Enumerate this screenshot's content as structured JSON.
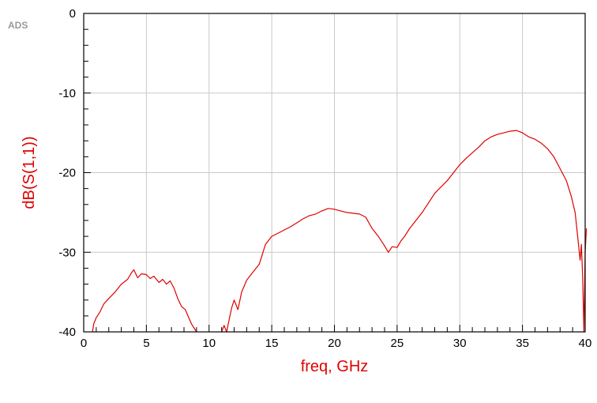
{
  "logo": "ADS",
  "colors": {
    "trace": "#e00000",
    "axis_title": "#e00000",
    "grid": "#c8c8c8",
    "frame": "#000000"
  },
  "chart_data": {
    "type": "line",
    "title": "",
    "xlabel": "freq, GHz",
    "ylabel": "dB(S(1,1))",
    "xlim": [
      0,
      40
    ],
    "ylim": [
      -40,
      0
    ],
    "x_ticks": [
      0,
      5,
      10,
      15,
      20,
      25,
      30,
      35,
      40
    ],
    "x_tick_labels": [
      "0",
      "5",
      "10",
      "15",
      "20",
      "25",
      "30",
      "35",
      "40"
    ],
    "y_ticks": [
      -40,
      -30,
      -20,
      -10,
      0
    ],
    "y_tick_labels": [
      "-40",
      "-30",
      "-20",
      "-10",
      "0"
    ],
    "grid": true,
    "series": [
      {
        "segments": [
          [
            [
              0.7,
              -40
            ],
            [
              0.8,
              -39
            ],
            [
              1.0,
              -38.2
            ],
            [
              1.3,
              -37.5
            ],
            [
              1.6,
              -36.5
            ],
            [
              2.0,
              -35.8
            ],
            [
              2.5,
              -35
            ],
            [
              3.0,
              -34
            ],
            [
              3.5,
              -33.4
            ],
            [
              3.8,
              -32.6
            ],
            [
              4.0,
              -32.2
            ],
            [
              4.3,
              -33.2
            ],
            [
              4.6,
              -32.7
            ],
            [
              5.0,
              -32.8
            ],
            [
              5.3,
              -33.3
            ],
            [
              5.6,
              -33
            ],
            [
              6.0,
              -33.8
            ],
            [
              6.3,
              -33.4
            ],
            [
              6.6,
              -34
            ],
            [
              6.9,
              -33.6
            ],
            [
              7.2,
              -34.5
            ],
            [
              7.5,
              -35.8
            ],
            [
              7.8,
              -36.8
            ],
            [
              8.1,
              -37.2
            ],
            [
              8.4,
              -38.3
            ],
            [
              8.6,
              -39
            ],
            [
              8.8,
              -39.5
            ],
            [
              9.0,
              -40
            ]
          ],
          [
            [
              11.0,
              -40
            ],
            [
              11.2,
              -39.2
            ],
            [
              11.4,
              -40
            ],
            [
              11.6,
              -38.5
            ],
            [
              11.8,
              -37
            ],
            [
              12.0,
              -36
            ],
            [
              12.3,
              -37.2
            ],
            [
              12.6,
              -35
            ],
            [
              13.0,
              -33.5
            ],
            [
              13.5,
              -32.5
            ],
            [
              14.0,
              -31.5
            ],
            [
              14.5,
              -29
            ],
            [
              15.0,
              -28
            ],
            [
              15.5,
              -27.6
            ],
            [
              16.0,
              -27.2
            ],
            [
              16.5,
              -26.8
            ],
            [
              17.0,
              -26.3
            ],
            [
              17.5,
              -25.8
            ],
            [
              18.0,
              -25.4
            ],
            [
              18.5,
              -25.2
            ],
            [
              19.0,
              -24.8
            ],
            [
              19.5,
              -24.5
            ],
            [
              20.0,
              -24.6
            ],
            [
              20.5,
              -24.8
            ],
            [
              21.0,
              -25
            ],
            [
              21.5,
              -25.1
            ],
            [
              22.0,
              -25.2
            ],
            [
              22.5,
              -25.6
            ],
            [
              23.0,
              -27
            ],
            [
              23.5,
              -28
            ],
            [
              24.0,
              -29.2
            ],
            [
              24.3,
              -30
            ],
            [
              24.6,
              -29.3
            ],
            [
              25.0,
              -29.4
            ],
            [
              25.3,
              -28.6
            ],
            [
              25.6,
              -28
            ],
            [
              26.0,
              -27
            ],
            [
              26.5,
              -26
            ],
            [
              27.0,
              -25
            ],
            [
              27.5,
              -23.8
            ],
            [
              28.0,
              -22.6
            ],
            [
              28.5,
              -21.8
            ],
            [
              29.0,
              -21
            ],
            [
              29.5,
              -20
            ],
            [
              30.0,
              -19
            ],
            [
              30.5,
              -18.2
            ],
            [
              31.0,
              -17.5
            ],
            [
              31.5,
              -16.8
            ],
            [
              32.0,
              -16
            ],
            [
              32.5,
              -15.5
            ],
            [
              33.0,
              -15.2
            ],
            [
              33.5,
              -15
            ],
            [
              34.0,
              -14.8
            ],
            [
              34.5,
              -14.7
            ],
            [
              35.0,
              -15
            ],
            [
              35.5,
              -15.5
            ],
            [
              36.0,
              -15.8
            ],
            [
              36.5,
              -16.3
            ],
            [
              37.0,
              -17
            ],
            [
              37.5,
              -18
            ],
            [
              38.0,
              -19.5
            ],
            [
              38.5,
              -21
            ],
            [
              38.9,
              -23
            ],
            [
              39.2,
              -25
            ],
            [
              39.4,
              -28
            ],
            [
              39.6,
              -31
            ],
            [
              39.7,
              -29
            ],
            [
              39.8,
              -33
            ],
            [
              39.9,
              -40
            ],
            [
              40.0,
              -30
            ],
            [
              40.1,
              -27
            ]
          ]
        ]
      }
    ]
  }
}
